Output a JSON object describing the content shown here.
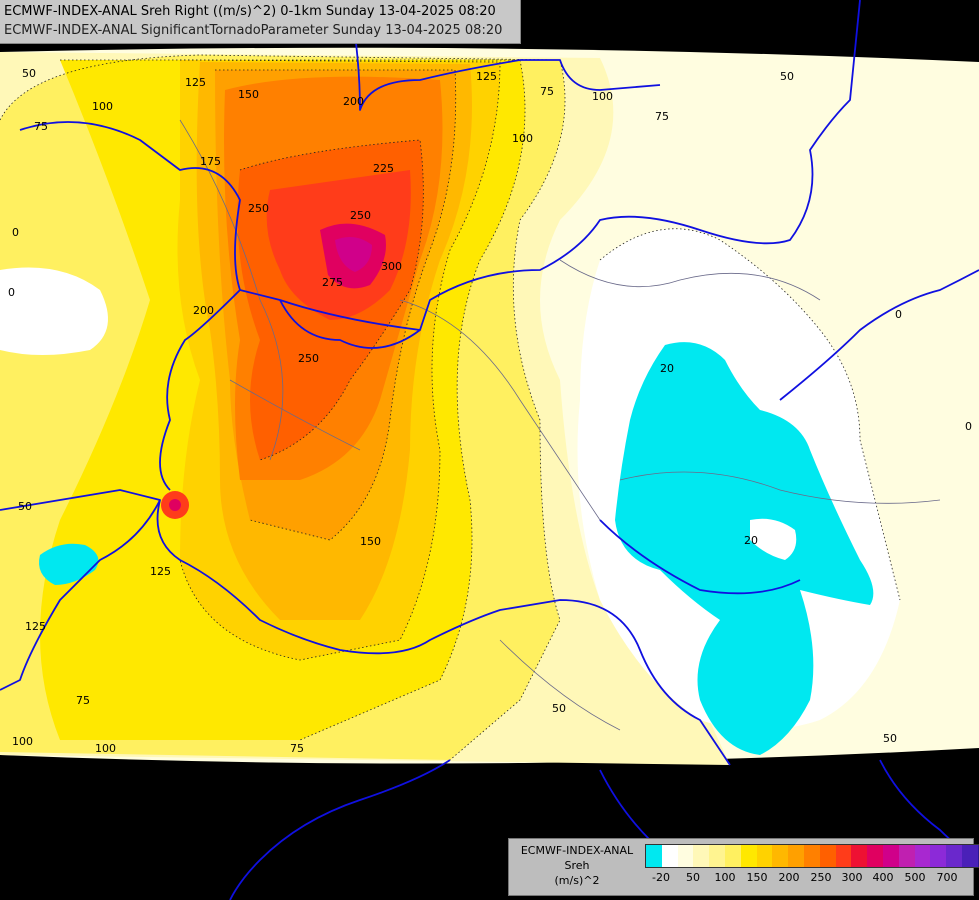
{
  "titles": {
    "line1": "ECMWF-INDEX-ANAL Sreh Right ((m/s)^2) 0-1km Sunday 13-04-2025 08:20",
    "line2": "ECMWF-INDEX-ANAL SignificantTornadoParameter Sunday 13-04-2025 08:20"
  },
  "legend": {
    "model": "ECMWF-INDEX-ANAL",
    "parameter": "Sreh",
    "unit": "(m/s)^2",
    "colors": [
      "#00e8f0",
      "#ffffff",
      "#fffde0",
      "#fff8b8",
      "#fff490",
      "#fff060",
      "#ffe800",
      "#ffd200",
      "#ffb800",
      "#ffa000",
      "#ff8000",
      "#ff6000",
      "#ff3c1a",
      "#ee1133",
      "#e00060",
      "#d0008a",
      "#c020b0",
      "#a828d0",
      "#8c2ad8",
      "#6a28cc",
      "#4a20b8",
      "#2a1890",
      "#1a1068"
    ],
    "ticks": [
      "-20",
      "50",
      "100",
      "150",
      "200",
      "250",
      "300",
      "400",
      "500",
      "700"
    ]
  },
  "map": {
    "colors": {
      "ocean_band": "#000000",
      "sreh_lt_minus20": "#00e8f0",
      "sreh_0": "#ffffff",
      "sreh_25": "#fffde0",
      "sreh_50": "#fff8b8",
      "sreh_75": "#fff060",
      "sreh_100": "#ffe800",
      "sreh_125": "#ffd200",
      "sreh_150": "#ffb800",
      "sreh_175": "#ffa000",
      "sreh_200": "#ff8000",
      "sreh_250": "#ff6000",
      "sreh_275": "#ff3c1a",
      "sreh_300": "#e00060",
      "country_border": "#1010e0",
      "region_border": "#6a6a8a"
    },
    "contour_labels": [
      {
        "text": "50"
      },
      {
        "text": "75"
      },
      {
        "text": "100"
      },
      {
        "text": "125"
      },
      {
        "text": "150"
      },
      {
        "text": "175"
      },
      {
        "text": "200"
      },
      {
        "text": "125"
      },
      {
        "text": "75"
      },
      {
        "text": "100"
      },
      {
        "text": "100"
      },
      {
        "text": "75"
      },
      {
        "text": "50"
      },
      {
        "text": "250"
      },
      {
        "text": "225"
      },
      {
        "text": "250"
      },
      {
        "text": "300"
      },
      {
        "text": "275"
      },
      {
        "text": "200"
      },
      {
        "text": "250"
      },
      {
        "text": "0"
      },
      {
        "text": "0"
      },
      {
        "text": "20"
      },
      {
        "text": "0"
      },
      {
        "text": "20"
      },
      {
        "text": "150"
      },
      {
        "text": "50"
      },
      {
        "text": "125"
      },
      {
        "text": "125"
      },
      {
        "text": "75"
      },
      {
        "text": "100"
      },
      {
        "text": "100"
      },
      {
        "text": "75"
      },
      {
        "text": "50"
      },
      {
        "text": "50"
      },
      {
        "text": "0"
      }
    ]
  }
}
